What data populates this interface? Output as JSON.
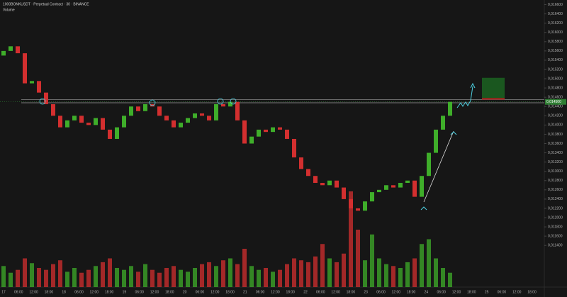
{
  "chart_data": {
    "type": "candlestick",
    "title": "1000BONKUSDT · Perpetual Contract · 30 · BINANCE",
    "subtitle": "Volume",
    "up_color": "#3fae2a",
    "down_color": "#d32f2f",
    "open": [
      0.0155,
      0.0156,
      0.0157,
      0.01555,
      0.0149,
      0.01495,
      0.0147,
      0.01445,
      0.0142,
      0.01395,
      0.0141,
      0.0142,
      0.01405,
      0.014,
      0.01415,
      0.0139,
      0.0137,
      0.01395,
      0.0142,
      0.0144,
      0.0143,
      0.01445,
      0.0144,
      0.0142,
      0.0141,
      0.01395,
      0.01405,
      0.01415,
      0.01425,
      0.0142,
      0.0141,
      0.01445,
      0.0144,
      0.0145,
      0.0141,
      0.0136,
      0.01375,
      0.0139,
      0.01385,
      0.01395,
      0.0139,
      0.0137,
      0.0133,
      0.01305,
      0.0129,
      0.01275,
      0.0127,
      0.0128,
      0.01265,
      0.0124,
      0.0122,
      0.01215,
      0.01235,
      0.01255,
      0.0126,
      0.0127,
      0.01265,
      0.01275,
      0.0128,
      0.01245,
      0.0129,
      0.0134,
      0.0139,
      0.0142
    ],
    "close": [
      0.0156,
      0.0157,
      0.01555,
      0.0149,
      0.01495,
      0.0147,
      0.01445,
      0.0142,
      0.01395,
      0.0141,
      0.0142,
      0.01405,
      0.014,
      0.01415,
      0.0139,
      0.0137,
      0.01395,
      0.0142,
      0.0144,
      0.0143,
      0.01445,
      0.0144,
      0.0142,
      0.0141,
      0.01395,
      0.01405,
      0.01415,
      0.01425,
      0.0142,
      0.0141,
      0.01445,
      0.0144,
      0.0145,
      0.0141,
      0.0136,
      0.01375,
      0.0139,
      0.01385,
      0.01395,
      0.0139,
      0.0137,
      0.0133,
      0.01305,
      0.0129,
      0.01275,
      0.0127,
      0.0128,
      0.01265,
      0.0124,
      0.0122,
      0.01215,
      0.01235,
      0.01255,
      0.0126,
      0.0127,
      0.01265,
      0.01275,
      0.0128,
      0.01245,
      0.0129,
      0.0134,
      0.0139,
      0.0142,
      0.0145
    ],
    "volume": [
      22,
      15,
      18,
      30,
      25,
      20,
      18,
      24,
      28,
      16,
      20,
      15,
      18,
      22,
      26,
      30,
      20,
      18,
      22,
      16,
      24,
      18,
      15,
      20,
      22,
      18,
      16,
      20,
      24,
      26,
      22,
      28,
      30,
      24,
      40,
      22,
      18,
      20,
      16,
      18,
      24,
      30,
      28,
      26,
      32,
      45,
      30,
      26,
      35,
      100,
      60,
      28,
      55,
      30,
      24,
      22,
      20,
      26,
      30,
      45,
      50,
      30,
      20,
      15
    ],
    "vlim": [
      0,
      100
    ],
    "ylim": [
      0.0105,
      0.0167
    ],
    "yticks": [
      {
        "value": 0.0166,
        "label": "0,016600"
      },
      {
        "value": 0.0164,
        "label": "0,016400"
      },
      {
        "value": 0.0162,
        "label": "0,016200"
      },
      {
        "value": 0.016,
        "label": "0,016000"
      },
      {
        "value": 0.0158,
        "label": "0,015800"
      },
      {
        "value": 0.0156,
        "label": "0,015600"
      },
      {
        "value": 0.0154,
        "label": "0,015400"
      },
      {
        "value": 0.0152,
        "label": "0,015200"
      },
      {
        "value": 0.015,
        "label": "0,015000"
      },
      {
        "value": 0.0148,
        "label": "0,014800"
      },
      {
        "value": 0.0146,
        "label": "0,014600"
      },
      {
        "value": 0.0144,
        "label": "0,014400"
      },
      {
        "value": 0.0142,
        "label": "0,014200"
      },
      {
        "value": 0.014,
        "label": "0,014000"
      },
      {
        "value": 0.0138,
        "label": "0,013800"
      },
      {
        "value": 0.0136,
        "label": "0,013600"
      },
      {
        "value": 0.0134,
        "label": "0,013400"
      },
      {
        "value": 0.0132,
        "label": "0,013200"
      },
      {
        "value": 0.013,
        "label": "0,013000"
      },
      {
        "value": 0.0128,
        "label": "0,012800"
      },
      {
        "value": 0.0126,
        "label": "0,012600"
      },
      {
        "value": 0.0124,
        "label": "0,012400"
      },
      {
        "value": 0.0122,
        "label": "0,012200"
      },
      {
        "value": 0.012,
        "label": "0,012000"
      },
      {
        "value": 0.0118,
        "label": "0,011800"
      },
      {
        "value": 0.0116,
        "label": "0,011600"
      },
      {
        "value": 0.0114,
        "label": "0,011400"
      }
    ],
    "resistance": [
      0.01455,
      0.01448
    ],
    "target_zone": [
      0.01458,
      0.01502
    ],
    "last_price": {
      "value": 0.0145,
      "label": "0,014500"
    },
    "x_labels": [
      "17",
      "06:00",
      "12:00",
      "18:00",
      "18",
      "06:00",
      "12:00",
      "18:00",
      "19",
      "06:00",
      "12:00",
      "18:00",
      "20",
      "06:00",
      "12:00",
      "18:00",
      "21",
      "06:00",
      "12:00",
      "18:00",
      "22",
      "06:00",
      "12:00",
      "18:00",
      "23",
      "06:00",
      "12:00",
      "18:00",
      "24",
      "06:00",
      "12:00",
      "18:00",
      "25",
      "06:00",
      "12:00",
      "18:00"
    ]
  }
}
